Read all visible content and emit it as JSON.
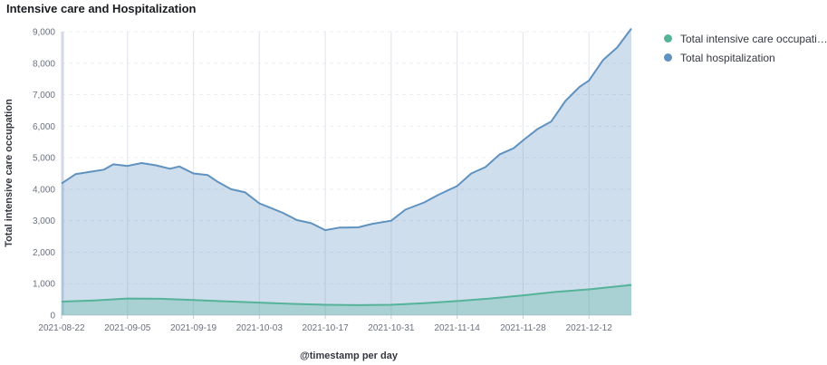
{
  "panel": {
    "title": "Intensive care and Hospitalization"
  },
  "colors": {
    "icu": "#54b399",
    "hospital": "#6092c0"
  },
  "legend": {
    "items": [
      {
        "label": "Total intensive care occupation",
        "color": "#54b399"
      },
      {
        "label": "Total hospitalization",
        "color": "#6092c0"
      }
    ]
  },
  "chart_data": {
    "type": "area",
    "title": "Intensive care and Hospitalization",
    "xlabel": "@timestamp per day",
    "ylabel": "Total intensive care occupation",
    "xlim": [
      "2021-08-22",
      "2021-12-21"
    ],
    "ylim": [
      0,
      9000
    ],
    "x_ticks": [
      "2021-08-22",
      "2021-09-05",
      "2021-09-19",
      "2021-10-03",
      "2021-10-17",
      "2021-10-31",
      "2021-11-14",
      "2021-11-28",
      "2021-12-12"
    ],
    "y_ticks": [
      "0",
      "1,000",
      "2,000",
      "3,000",
      "4,000",
      "5,000",
      "6,000",
      "7,000",
      "8,000",
      "9,000"
    ],
    "grid": true,
    "legend_position": "right",
    "series": [
      {
        "name": "Total hospitalization",
        "points": [
          [
            "2021-08-22",
            4180
          ],
          [
            "2021-08-25",
            4480
          ],
          [
            "2021-08-28",
            4550
          ],
          [
            "2021-08-31",
            4620
          ],
          [
            "2021-09-02",
            4790
          ],
          [
            "2021-09-05",
            4740
          ],
          [
            "2021-09-08",
            4830
          ],
          [
            "2021-09-11",
            4760
          ],
          [
            "2021-09-14",
            4650
          ],
          [
            "2021-09-16",
            4720
          ],
          [
            "2021-09-19",
            4500
          ],
          [
            "2021-09-22",
            4450
          ],
          [
            "2021-09-24",
            4250
          ],
          [
            "2021-09-27",
            4000
          ],
          [
            "2021-09-30",
            3900
          ],
          [
            "2021-10-03",
            3550
          ],
          [
            "2021-10-05",
            3430
          ],
          [
            "2021-10-08",
            3250
          ],
          [
            "2021-10-11",
            3020
          ],
          [
            "2021-10-14",
            2920
          ],
          [
            "2021-10-17",
            2700
          ],
          [
            "2021-10-20",
            2780
          ],
          [
            "2021-10-24",
            2790
          ],
          [
            "2021-10-27",
            2900
          ],
          [
            "2021-10-31",
            3000
          ],
          [
            "2021-11-03",
            3350
          ],
          [
            "2021-11-07",
            3580
          ],
          [
            "2021-11-10",
            3820
          ],
          [
            "2021-11-14",
            4100
          ],
          [
            "2021-11-17",
            4500
          ],
          [
            "2021-11-20",
            4700
          ],
          [
            "2021-11-23",
            5100
          ],
          [
            "2021-11-26",
            5300
          ],
          [
            "2021-11-28",
            5550
          ],
          [
            "2021-12-01",
            5900
          ],
          [
            "2021-12-04",
            6150
          ],
          [
            "2021-12-07",
            6800
          ],
          [
            "2021-12-10",
            7250
          ],
          [
            "2021-12-12",
            7450
          ],
          [
            "2021-12-15",
            8100
          ],
          [
            "2021-12-18",
            8500
          ],
          [
            "2021-12-21",
            9100
          ]
        ]
      },
      {
        "name": "Total intensive care occupation",
        "points": [
          [
            "2021-08-22",
            430
          ],
          [
            "2021-08-29",
            470
          ],
          [
            "2021-09-05",
            530
          ],
          [
            "2021-09-12",
            520
          ],
          [
            "2021-09-19",
            480
          ],
          [
            "2021-09-26",
            440
          ],
          [
            "2021-10-03",
            400
          ],
          [
            "2021-10-10",
            360
          ],
          [
            "2021-10-17",
            330
          ],
          [
            "2021-10-24",
            320
          ],
          [
            "2021-10-31",
            330
          ],
          [
            "2021-11-07",
            380
          ],
          [
            "2021-11-14",
            450
          ],
          [
            "2021-11-21",
            530
          ],
          [
            "2021-11-28",
            630
          ],
          [
            "2021-12-05",
            740
          ],
          [
            "2021-12-12",
            820
          ],
          [
            "2021-12-21",
            960
          ]
        ]
      }
    ]
  }
}
